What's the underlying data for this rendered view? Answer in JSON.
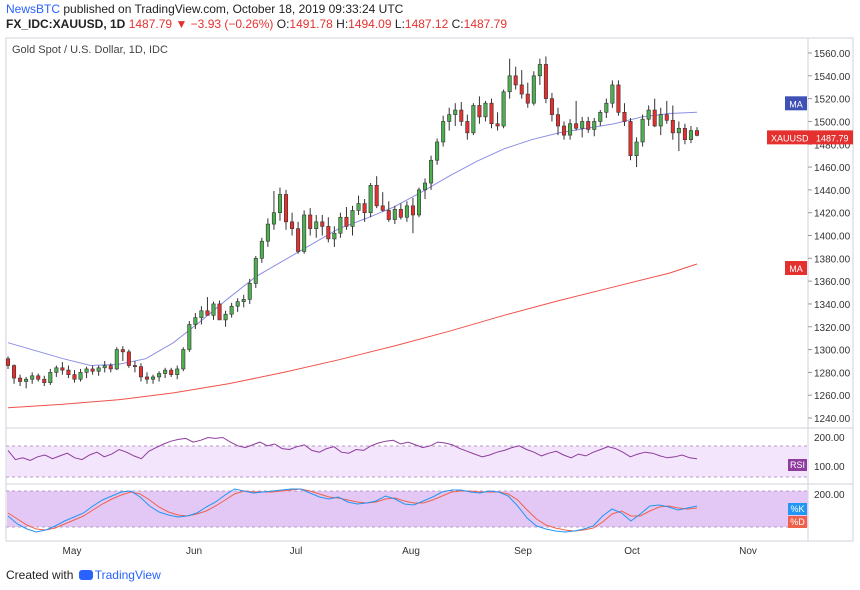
{
  "header": {
    "brand": "NewsBTC",
    "published": " published on TradingView.com, October 18, 2019 09:33:24 UTC",
    "symbol": "FX_IDC:XAUUSD, 1D",
    "last": "1487.79",
    "arrow": "▼",
    "change": "−3.93 (−0.26%)",
    "open_label": "O:",
    "open": "1491.78",
    "high_label": "H:",
    "high": "1494.09",
    "low_label": "L:",
    "low": "1487.12",
    "close_label": "C:",
    "close": "1487.79"
  },
  "footer": {
    "created": "Created with",
    "tradingview": "TradingView"
  },
  "colors": {
    "up": "#4caf50",
    "down": "#e4312f",
    "ma_fast": "#8c8fe6",
    "ma_slow": "#f0514a",
    "rsi_line": "#8e3c9e",
    "rsi_band": "#f3e5fb",
    "stoch_band": "#e3c8f5",
    "stoch_k": "#2196f3",
    "stoch_d": "#f0614a",
    "price_tag": "#e4312f",
    "ma_tag": "#3f51b5"
  },
  "chart_data": {
    "type": "candlestick",
    "title": "Gold Spot / U.S. Dollar, 1D, IDC",
    "x_labels": [
      "May",
      "Jun",
      "Jul",
      "Aug",
      "Sep",
      "Oct",
      "Nov"
    ],
    "y_ticks": [
      1240,
      1260,
      1280,
      1300,
      1320,
      1340,
      1360,
      1380,
      1400,
      1420,
      1440,
      1460,
      1480,
      1500,
      1520,
      1540,
      1560
    ],
    "ylim": [
      1232,
      1568
    ],
    "ohlc_sessions": [
      "2019-04-15",
      "2019-10-18"
    ],
    "ohlc": [
      [
        1292,
        1294,
        1283,
        1286
      ],
      [
        1286,
        1287,
        1270,
        1275
      ],
      [
        1275,
        1278,
        1268,
        1272
      ],
      [
        1272,
        1276,
        1266,
        1274
      ],
      [
        1274,
        1280,
        1270,
        1277
      ],
      [
        1277,
        1279,
        1272,
        1274
      ],
      [
        1274,
        1277,
        1268,
        1271
      ],
      [
        1271,
        1283,
        1269,
        1280
      ],
      [
        1280,
        1286,
        1276,
        1284
      ],
      [
        1284,
        1289,
        1278,
        1282
      ],
      [
        1282,
        1286,
        1275,
        1278
      ],
      [
        1278,
        1282,
        1271,
        1274
      ],
      [
        1274,
        1283,
        1272,
        1280
      ],
      [
        1280,
        1285,
        1275,
        1283
      ],
      [
        1283,
        1286,
        1278,
        1281
      ],
      [
        1281,
        1286,
        1277,
        1284
      ],
      [
        1284,
        1290,
        1280,
        1286
      ],
      [
        1286,
        1288,
        1280,
        1283
      ],
      [
        1283,
        1302,
        1282,
        1300
      ],
      [
        1300,
        1303,
        1290,
        1298
      ],
      [
        1298,
        1300,
        1284,
        1286
      ],
      [
        1286,
        1290,
        1280,
        1285
      ],
      [
        1285,
        1288,
        1272,
        1276
      ],
      [
        1276,
        1280,
        1270,
        1274
      ],
      [
        1274,
        1278,
        1270,
        1276
      ],
      [
        1276,
        1281,
        1272,
        1279
      ],
      [
        1279,
        1284,
        1275,
        1282
      ],
      [
        1282,
        1284,
        1276,
        1278
      ],
      [
        1278,
        1286,
        1274,
        1283
      ],
      [
        1283,
        1302,
        1281,
        1300
      ],
      [
        1300,
        1325,
        1298,
        1322
      ],
      [
        1322,
        1332,
        1318,
        1328
      ],
      [
        1328,
        1338,
        1322,
        1334
      ],
      [
        1334,
        1346,
        1330,
        1330
      ],
      [
        1330,
        1342,
        1326,
        1340
      ],
      [
        1340,
        1343,
        1328,
        1326
      ],
      [
        1326,
        1334,
        1320,
        1331
      ],
      [
        1331,
        1341,
        1328,
        1338
      ],
      [
        1338,
        1345,
        1333,
        1342
      ],
      [
        1342,
        1348,
        1337,
        1344
      ],
      [
        1344,
        1362,
        1340,
        1358
      ],
      [
        1358,
        1382,
        1354,
        1380
      ],
      [
        1380,
        1398,
        1376,
        1395
      ],
      [
        1395,
        1415,
        1390,
        1410
      ],
      [
        1410,
        1439,
        1405,
        1420
      ],
      [
        1420,
        1442,
        1413,
        1436
      ],
      [
        1436,
        1440,
        1405,
        1412
      ],
      [
        1412,
        1420,
        1400,
        1406
      ],
      [
        1406,
        1412,
        1384,
        1386
      ],
      [
        1386,
        1422,
        1384,
        1418
      ],
      [
        1418,
        1424,
        1400,
        1406
      ],
      [
        1406,
        1418,
        1398,
        1412
      ],
      [
        1412,
        1418,
        1400,
        1408
      ],
      [
        1408,
        1416,
        1394,
        1397
      ],
      [
        1397,
        1408,
        1390,
        1402
      ],
      [
        1402,
        1420,
        1398,
        1416
      ],
      [
        1416,
        1425,
        1405,
        1408
      ],
      [
        1408,
        1426,
        1400,
        1422
      ],
      [
        1422,
        1435,
        1418,
        1428
      ],
      [
        1428,
        1432,
        1412,
        1420
      ],
      [
        1420,
        1446,
        1416,
        1444
      ],
      [
        1444,
        1452,
        1424,
        1426
      ],
      [
        1426,
        1438,
        1421,
        1422
      ],
      [
        1422,
        1430,
        1412,
        1414
      ],
      [
        1414,
        1426,
        1410,
        1423
      ],
      [
        1423,
        1428,
        1414,
        1416
      ],
      [
        1416,
        1430,
        1412,
        1426
      ],
      [
        1426,
        1433,
        1402,
        1418
      ],
      [
        1418,
        1442,
        1416,
        1440
      ],
      [
        1440,
        1450,
        1432,
        1446
      ],
      [
        1446,
        1470,
        1440,
        1466
      ],
      [
        1466,
        1485,
        1462,
        1482
      ],
      [
        1482,
        1505,
        1478,
        1500
      ],
      [
        1500,
        1512,
        1492,
        1506
      ],
      [
        1506,
        1516,
        1496,
        1510
      ],
      [
        1510,
        1517,
        1496,
        1500
      ],
      [
        1500,
        1506,
        1484,
        1490
      ],
      [
        1490,
        1516,
        1488,
        1514
      ],
      [
        1514,
        1522,
        1498,
        1504
      ],
      [
        1504,
        1518,
        1500,
        1516
      ],
      [
        1516,
        1520,
        1494,
        1498
      ],
      [
        1498,
        1508,
        1492,
        1496
      ],
      [
        1496,
        1528,
        1494,
        1526
      ],
      [
        1526,
        1555,
        1520,
        1540
      ],
      [
        1540,
        1548,
        1528,
        1532
      ],
      [
        1532,
        1545,
        1520,
        1524
      ],
      [
        1524,
        1534,
        1512,
        1516
      ],
      [
        1516,
        1544,
        1514,
        1540
      ],
      [
        1540,
        1555,
        1532,
        1550
      ],
      [
        1550,
        1557,
        1516,
        1520
      ],
      [
        1520,
        1525,
        1500,
        1506
      ],
      [
        1506,
        1512,
        1488,
        1496
      ],
      [
        1496,
        1500,
        1484,
        1488
      ],
      [
        1488,
        1502,
        1484,
        1498
      ],
      [
        1498,
        1518,
        1492,
        1494
      ],
      [
        1494,
        1504,
        1486,
        1500
      ],
      [
        1500,
        1504,
        1490,
        1493
      ],
      [
        1493,
        1503,
        1487,
        1500
      ],
      [
        1500,
        1510,
        1496,
        1508
      ],
      [
        1508,
        1520,
        1503,
        1516
      ],
      [
        1516,
        1536,
        1512,
        1532
      ],
      [
        1532,
        1536,
        1505,
        1508
      ],
      [
        1508,
        1516,
        1496,
        1500
      ],
      [
        1500,
        1503,
        1466,
        1470
      ],
      [
        1470,
        1486,
        1460,
        1482
      ],
      [
        1482,
        1506,
        1478,
        1502
      ],
      [
        1502,
        1514,
        1496,
        1510
      ],
      [
        1510,
        1520,
        1495,
        1496
      ],
      [
        1496,
        1512,
        1488,
        1506
      ],
      [
        1506,
        1518,
        1498,
        1501
      ],
      [
        1501,
        1514,
        1484,
        1490
      ],
      [
        1490,
        1500,
        1474,
        1494
      ],
      [
        1494,
        1498,
        1480,
        1484
      ],
      [
        1484,
        1496,
        1481,
        1492
      ],
      [
        1492,
        1495,
        1487,
        1487.79
      ]
    ],
    "series": [
      {
        "name": "MA",
        "type": "line",
        "values": [
          [
            0,
            1306
          ],
          [
            20,
            1299
          ],
          [
            40,
            1292
          ],
          [
            60,
            1286
          ],
          [
            80,
            1287
          ],
          [
            100,
            1292
          ],
          [
            120,
            1306
          ],
          [
            140,
            1325
          ],
          [
            160,
            1345
          ],
          [
            180,
            1364
          ],
          [
            200,
            1378
          ],
          [
            220,
            1392
          ],
          [
            240,
            1406
          ],
          [
            260,
            1415
          ],
          [
            280,
            1425
          ],
          [
            300,
            1438
          ],
          [
            320,
            1452
          ],
          [
            340,
            1465
          ],
          [
            360,
            1476
          ],
          [
            380,
            1484
          ],
          [
            400,
            1490
          ],
          [
            420,
            1494
          ],
          [
            440,
            1498
          ],
          [
            460,
            1504
          ],
          [
            480,
            1507
          ],
          [
            500,
            1508
          ]
        ]
      },
      {
        "name": "MA",
        "type": "line",
        "values": [
          [
            0,
            1249
          ],
          [
            40,
            1252
          ],
          [
            80,
            1256
          ],
          [
            120,
            1262
          ],
          [
            160,
            1270
          ],
          [
            200,
            1280
          ],
          [
            240,
            1291
          ],
          [
            280,
            1303
          ],
          [
            320,
            1316
          ],
          [
            360,
            1330
          ],
          [
            400,
            1343
          ],
          [
            440,
            1355
          ],
          [
            480,
            1367
          ],
          [
            500,
            1375
          ]
        ]
      }
    ],
    "price_tag": "XAUUSD",
    "price_value": "1487.79",
    "ma_tag_1": "MA",
    "ma_tag_2": "MA",
    "rsi": {
      "label": "RSI",
      "ticks": [
        "200.00",
        "100.00"
      ],
      "values": [
        60,
        40,
        44,
        38,
        46,
        50,
        42,
        48,
        54,
        44,
        40,
        50,
        56,
        46,
        52,
        62,
        56,
        48,
        42,
        58,
        66,
        74,
        80,
        84,
        86,
        78,
        82,
        88,
        86,
        88,
        78,
        70,
        66,
        72,
        78,
        70,
        74,
        64,
        62,
        68,
        72,
        60,
        56,
        64,
        68,
        56,
        54,
        62,
        60,
        70,
        76,
        80,
        82,
        74,
        78,
        72,
        66,
        70,
        78,
        76,
        72,
        64,
        58,
        52,
        46,
        50,
        56,
        60,
        66,
        70,
        62,
        56,
        48,
        54,
        58,
        50,
        44,
        52,
        48,
        56,
        62,
        68,
        64,
        56,
        46,
        52,
        56,
        54,
        48,
        44,
        46,
        50,
        44,
        42
      ]
    },
    "stochastic": {
      "ticks": [
        "200.00"
      ],
      "k_label": "%K",
      "d_label": "%D",
      "k": [
        40,
        24,
        14,
        8,
        12,
        20,
        30,
        38,
        46,
        60,
        72,
        80,
        88,
        90,
        78,
        60,
        48,
        42,
        38,
        40,
        46,
        58,
        68,
        82,
        94,
        90,
        86,
        88,
        90,
        92,
        94,
        94,
        86,
        78,
        74,
        78,
        68,
        64,
        66,
        70,
        80,
        74,
        64,
        62,
        70,
        78,
        88,
        92,
        92,
        88,
        86,
        90,
        88,
        80,
        60,
        36,
        20,
        14,
        10,
        8,
        10,
        14,
        20,
        40,
        54,
        46,
        30,
        44,
        60,
        62,
        58,
        52,
        56,
        60
      ],
      "d": [
        46,
        34,
        22,
        14,
        12,
        16,
        24,
        32,
        40,
        52,
        64,
        74,
        82,
        88,
        84,
        72,
        58,
        48,
        42,
        40,
        44,
        50,
        60,
        72,
        84,
        90,
        88,
        88,
        88,
        90,
        92,
        94,
        90,
        84,
        78,
        76,
        72,
        68,
        66,
        68,
        74,
        76,
        70,
        66,
        66,
        72,
        80,
        88,
        90,
        90,
        88,
        88,
        88,
        84,
        72,
        52,
        34,
        22,
        16,
        12,
        10,
        12,
        16,
        28,
        44,
        50,
        40,
        40,
        50,
        58,
        60,
        56,
        54,
        56
      ]
    }
  }
}
